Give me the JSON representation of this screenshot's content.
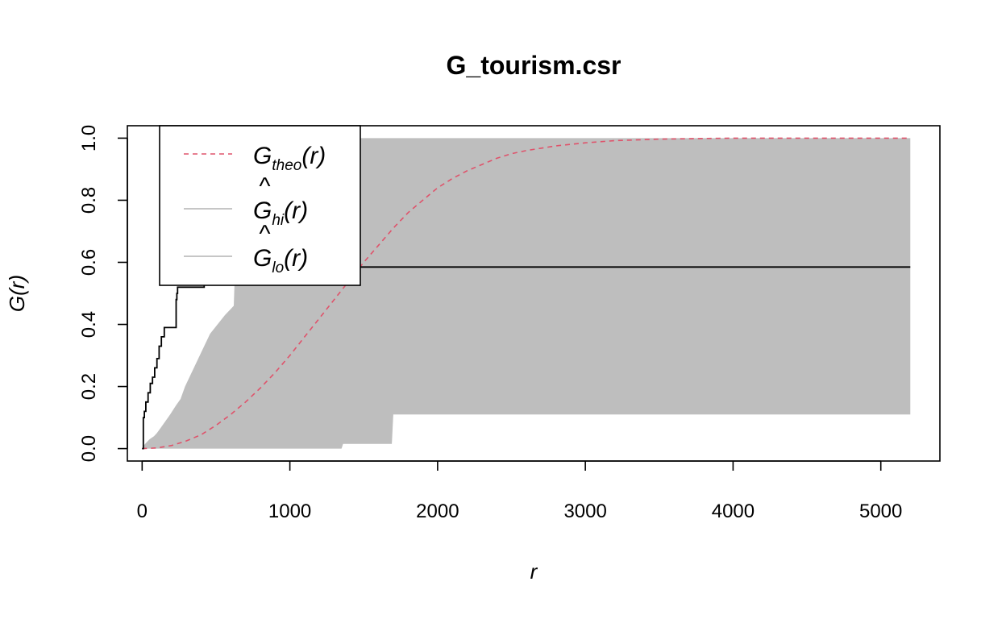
{
  "chart_data": {
    "type": "line",
    "title": "G_tourism.csr",
    "xlabel": "r",
    "ylabel": "G(r)",
    "xlim": [
      -100,
      5400
    ],
    "ylim": [
      -0.04,
      1.04
    ],
    "x_ticks": [
      0,
      1000,
      2000,
      3000,
      4000,
      5000
    ],
    "y_ticks": [
      0.0,
      0.2,
      0.4,
      0.6,
      0.8,
      1.0
    ],
    "x_tick_labels": [
      "0",
      "1000",
      "2000",
      "3000",
      "4000",
      "5000"
    ],
    "y_tick_labels": [
      "0.0",
      "0.2",
      "0.4",
      "0.6",
      "0.8",
      "1.0"
    ],
    "grid": false,
    "legend_position": "top-left",
    "legend": [
      {
        "key": "theo",
        "main": "G",
        "hat": false,
        "sub": "theo",
        "arg": "(r)",
        "style": "dashed",
        "color": "#DF536B"
      },
      {
        "key": "hi",
        "main": "G",
        "hat": true,
        "sub": "hi",
        "arg": "(r)",
        "style": "solid",
        "color": "#BEBEBE"
      },
      {
        "key": "lo",
        "main": "G",
        "hat": true,
        "sub": "lo",
        "arg": "(r)",
        "style": "solid",
        "color": "#BEBEBE"
      }
    ],
    "colors": {
      "theo": "#DF536B",
      "envelope": "#BEBEBE",
      "observed": "#000000"
    },
    "envelope": {
      "name": "",
      "hi": [
        [
          0,
          0
        ],
        [
          10,
          0.01
        ],
        [
          30,
          0.02
        ],
        [
          50,
          0.03
        ],
        [
          80,
          0.04
        ],
        [
          100,
          0.05
        ],
        [
          130,
          0.07
        ],
        [
          160,
          0.09
        ],
        [
          190,
          0.11
        ],
        [
          230,
          0.14
        ],
        [
          260,
          0.16
        ],
        [
          290,
          0.2
        ],
        [
          320,
          0.23
        ],
        [
          360,
          0.27
        ],
        [
          400,
          0.31
        ],
        [
          460,
          0.37
        ],
        [
          560,
          0.43
        ],
        [
          620,
          0.46
        ],
        [
          630,
          0.6
        ],
        [
          700,
          0.6
        ],
        [
          720,
          0.65
        ],
        [
          800,
          0.7
        ],
        [
          900,
          0.79
        ],
        [
          1000,
          0.83
        ],
        [
          1050,
          0.9
        ],
        [
          1060,
          1.0
        ],
        [
          5200,
          1.0
        ]
      ],
      "lo": [
        [
          0,
          0
        ],
        [
          1350,
          0
        ],
        [
          1360,
          0.015
        ],
        [
          1690,
          0.015
        ],
        [
          1700,
          0.11
        ],
        [
          5200,
          0.11
        ]
      ]
    },
    "series": [
      {
        "name": "",
        "style": "dashed",
        "x": [
          0,
          100,
          200,
          300,
          400,
          500,
          600,
          700,
          800,
          900,
          1000,
          1100,
          1200,
          1300,
          1400,
          1500,
          1600,
          1700,
          1800,
          1900,
          2000,
          2100,
          2200,
          2300,
          2400,
          2500,
          2600,
          2800,
          3000,
          3200,
          3500,
          3800,
          4000,
          4500,
          5000,
          5200
        ],
        "y": [
          0,
          0.002,
          0.01,
          0.025,
          0.045,
          0.075,
          0.11,
          0.15,
          0.195,
          0.245,
          0.3,
          0.36,
          0.42,
          0.48,
          0.54,
          0.6,
          0.655,
          0.71,
          0.76,
          0.8,
          0.84,
          0.87,
          0.895,
          0.915,
          0.935,
          0.95,
          0.96,
          0.975,
          0.985,
          0.992,
          0.997,
          0.999,
          1.0,
          1.0,
          1.0,
          1.0
        ]
      },
      {
        "name": "",
        "style": "step",
        "x": [
          0,
          8,
          15,
          25,
          40,
          55,
          70,
          85,
          100,
          115,
          130,
          150,
          170,
          230,
          235,
          240,
          420,
          425,
          5200
        ],
        "y": [
          0,
          0.1,
          0.12,
          0.15,
          0.18,
          0.21,
          0.23,
          0.26,
          0.29,
          0.33,
          0.36,
          0.39,
          0.39,
          0.48,
          0.5,
          0.52,
          0.55,
          0.585,
          0.585
        ]
      }
    ]
  }
}
